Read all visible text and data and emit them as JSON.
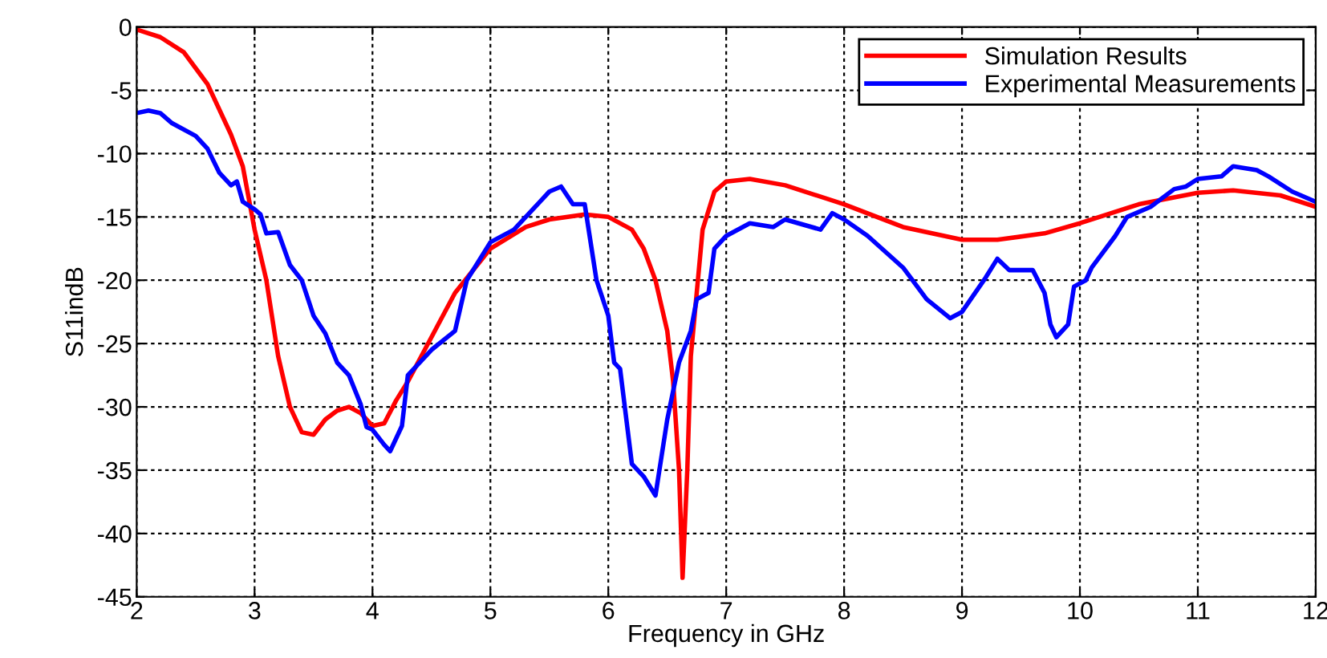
{
  "chart_data": {
    "type": "line",
    "xlabel": "Frequency in GHz",
    "ylabel": "S11indB",
    "xlim": [
      2,
      12
    ],
    "ylim": [
      -45,
      0
    ],
    "xticks": [
      2,
      3,
      4,
      5,
      6,
      7,
      8,
      9,
      10,
      11,
      12
    ],
    "yticks": [
      -45,
      -40,
      -35,
      -30,
      -25,
      -20,
      -15,
      -10,
      -5,
      0
    ],
    "grid": true,
    "legend": "top right",
    "line_style": "solid",
    "marker": "none",
    "series": [
      {
        "name": "Simulation Results",
        "color": "#ff0000",
        "x": [
          2.0,
          2.2,
          2.4,
          2.6,
          2.8,
          2.9,
          3.0,
          3.1,
          3.2,
          3.3,
          3.4,
          3.5,
          3.6,
          3.7,
          3.8,
          3.9,
          4.0,
          4.1,
          4.2,
          4.3,
          4.5,
          4.7,
          5.0,
          5.3,
          5.5,
          5.8,
          6.0,
          6.2,
          6.3,
          6.4,
          6.5,
          6.55,
          6.6,
          6.63,
          6.67,
          6.7,
          6.8,
          6.9,
          7.0,
          7.2,
          7.5,
          8.0,
          8.5,
          9.0,
          9.3,
          9.7,
          10.0,
          10.5,
          11.0,
          11.3,
          11.7,
          12.0
        ],
        "values": [
          -0.2,
          -0.8,
          -2,
          -4.5,
          -8.5,
          -11,
          -16,
          -20,
          -26,
          -30,
          -32,
          -32.2,
          -31,
          -30.3,
          -30,
          -30.5,
          -31.5,
          -31.3,
          -29.5,
          -28,
          -24.5,
          -21,
          -17.5,
          -15.8,
          -15.2,
          -14.8,
          -15,
          -16,
          -17.5,
          -20,
          -24,
          -28,
          -35,
          -43.5,
          -35,
          -26,
          -16,
          -13,
          -12.2,
          -12,
          -12.5,
          -14,
          -15.8,
          -16.8,
          -16.8,
          -16.3,
          -15.5,
          -14,
          -13.1,
          -12.9,
          -13.3,
          -14.2
        ]
      },
      {
        "name": "Experimental Measurements",
        "color": "#0000ff",
        "x": [
          2.0,
          2.1,
          2.2,
          2.3,
          2.5,
          2.6,
          2.7,
          2.8,
          2.85,
          2.9,
          3.0,
          3.05,
          3.1,
          3.2,
          3.3,
          3.4,
          3.5,
          3.6,
          3.7,
          3.8,
          3.9,
          3.95,
          4.0,
          4.1,
          4.15,
          4.25,
          4.3,
          4.5,
          4.7,
          4.8,
          5.0,
          5.2,
          5.4,
          5.5,
          5.6,
          5.7,
          5.8,
          5.9,
          6.0,
          6.05,
          6.1,
          6.2,
          6.3,
          6.4,
          6.5,
          6.6,
          6.7,
          6.75,
          6.85,
          6.9,
          7.0,
          7.2,
          7.4,
          7.5,
          7.8,
          7.9,
          8.0,
          8.2,
          8.5,
          8.7,
          8.9,
          9.0,
          9.2,
          9.3,
          9.4,
          9.6,
          9.7,
          9.75,
          9.8,
          9.9,
          9.95,
          10.05,
          10.1,
          10.3,
          10.4,
          10.6,
          10.8,
          10.9,
          11.0,
          11.2,
          11.3,
          11.5,
          11.6,
          11.8,
          12.0
        ],
        "values": [
          -6.8,
          -6.6,
          -6.8,
          -7.6,
          -8.6,
          -9.6,
          -11.5,
          -12.5,
          -12.2,
          -13.8,
          -14.4,
          -14.8,
          -16.3,
          -16.2,
          -18.8,
          -20,
          -22.8,
          -24.2,
          -26.5,
          -27.5,
          -29.8,
          -31.6,
          -31.8,
          -33,
          -33.5,
          -31.5,
          -27.5,
          -25.5,
          -24,
          -20,
          -17,
          -16,
          -14,
          -13,
          -12.6,
          -14,
          -14,
          -20,
          -22.8,
          -26.5,
          -27,
          -34.5,
          -35.5,
          -37,
          -31,
          -26.5,
          -24,
          -21.5,
          -21,
          -17.5,
          -16.5,
          -15.5,
          -15.8,
          -15.2,
          -16,
          -14.7,
          -15.2,
          -16.5,
          -19,
          -21.5,
          -23,
          -22.5,
          -19.8,
          -18.3,
          -19.2,
          -19.2,
          -21,
          -23.5,
          -24.5,
          -23.5,
          -20.5,
          -20,
          -19,
          -16.5,
          -15,
          -14.2,
          -12.8,
          -12.6,
          -12,
          -11.8,
          -11,
          -11.3,
          -11.8,
          -13,
          -13.8
        ]
      }
    ]
  }
}
